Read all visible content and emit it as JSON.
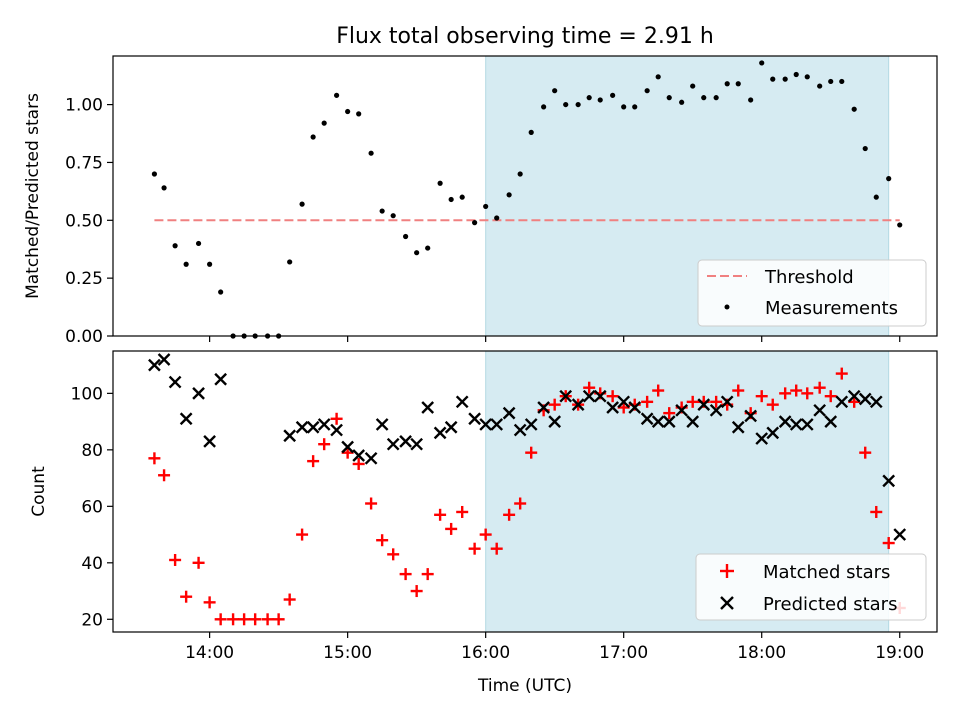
{
  "figure": {
    "title": "Flux total observing time = 2.91 h",
    "xlabel": "Time (UTC)",
    "x_ticks": [
      "14:00",
      "15:00",
      "16:00",
      "17:00",
      "18:00",
      "19:00"
    ],
    "x_tick_hours": [
      14,
      15,
      16,
      17,
      18,
      19
    ],
    "x_range": [
      13.3,
      19.27
    ],
    "highlight_span": [
      16.0,
      18.92
    ],
    "highlight_color": "#add8e6"
  },
  "chart_data": [
    {
      "type": "scatter",
      "ylabel": "Matched/Predicted stars",
      "ylim": [
        0,
        1.21
      ],
      "y_ticks": [
        0.0,
        0.25,
        0.5,
        0.75,
        1.0
      ],
      "y_tick_labels": [
        "0.00",
        "0.25",
        "0.50",
        "0.75",
        "1.00"
      ],
      "threshold": {
        "name": "Threshold",
        "y": 0.5,
        "x_range": [
          13.6,
          19.0
        ],
        "color": "#f08080"
      },
      "legend": {
        "position": "lower-right",
        "entries": [
          "Threshold",
          "Measurements"
        ]
      },
      "series": [
        {
          "name": "Measurements",
          "marker": "dot",
          "color": "#000000",
          "x": [
            13.6,
            13.67,
            13.75,
            13.83,
            13.92,
            14.0,
            14.08,
            14.17,
            14.25,
            14.33,
            14.42,
            14.5,
            14.58,
            14.67,
            14.75,
            14.83,
            14.92,
            15.0,
            15.08,
            15.17,
            15.25,
            15.33,
            15.42,
            15.5,
            15.58,
            15.67,
            15.75,
            15.83,
            15.92,
            16.0,
            16.08,
            16.17,
            16.25,
            16.33,
            16.42,
            16.5,
            16.58,
            16.67,
            16.75,
            16.83,
            16.92,
            17.0,
            17.08,
            17.17,
            17.25,
            17.33,
            17.42,
            17.5,
            17.58,
            17.67,
            17.75,
            17.83,
            17.92,
            18.0,
            18.08,
            18.17,
            18.25,
            18.33,
            18.42,
            18.5,
            18.58,
            18.67,
            18.75,
            18.83,
            18.92,
            19.0
          ],
          "y": [
            0.7,
            0.64,
            0.39,
            0.31,
            0.4,
            0.31,
            0.19,
            0.0,
            0.0,
            0.0,
            0.0,
            0.0,
            0.32,
            0.57,
            0.86,
            0.92,
            1.04,
            0.97,
            0.96,
            0.79,
            0.54,
            0.52,
            0.43,
            0.36,
            0.38,
            0.66,
            0.59,
            0.6,
            0.49,
            0.56,
            0.51,
            0.61,
            0.7,
            0.88,
            0.99,
            1.06,
            1.0,
            1.0,
            1.03,
            1.02,
            1.04,
            0.99,
            0.99,
            1.06,
            1.12,
            1.03,
            1.01,
            1.08,
            1.03,
            1.03,
            1.09,
            1.09,
            1.02,
            1.18,
            1.11,
            1.11,
            1.13,
            1.12,
            1.08,
            1.1,
            1.1,
            0.98,
            0.81,
            0.6,
            0.68,
            0.48
          ]
        }
      ]
    },
    {
      "type": "scatter",
      "ylabel": "Count",
      "ylim": [
        15.5,
        115
      ],
      "y_ticks": [
        20,
        40,
        60,
        80,
        100
      ],
      "y_tick_labels": [
        "20",
        "40",
        "60",
        "80",
        "100"
      ],
      "legend": {
        "position": "lower-right",
        "entries": [
          "Matched stars",
          "Predicted stars"
        ]
      },
      "series": [
        {
          "name": "Matched stars",
          "marker": "plus",
          "color": "#ff0000",
          "x": [
            13.6,
            13.67,
            13.75,
            13.83,
            13.92,
            14.0,
            14.08,
            14.17,
            14.25,
            14.33,
            14.42,
            14.5,
            14.58,
            14.67,
            14.75,
            14.83,
            14.92,
            15.0,
            15.08,
            15.17,
            15.25,
            15.33,
            15.42,
            15.5,
            15.58,
            15.67,
            15.75,
            15.83,
            15.92,
            16.0,
            16.08,
            16.17,
            16.25,
            16.33,
            16.42,
            16.5,
            16.58,
            16.67,
            16.75,
            16.83,
            16.92,
            17.0,
            17.08,
            17.17,
            17.25,
            17.33,
            17.42,
            17.5,
            17.58,
            17.67,
            17.75,
            17.83,
            17.92,
            18.0,
            18.08,
            18.17,
            18.25,
            18.33,
            18.42,
            18.5,
            18.58,
            18.67,
            18.75,
            18.83,
            18.92,
            19.0
          ],
          "y": [
            77,
            71,
            41,
            28,
            40,
            26,
            20,
            20,
            20,
            20,
            20,
            20,
            27,
            50,
            76,
            82,
            91,
            79,
            75,
            61,
            48,
            43,
            36,
            30,
            36,
            57,
            52,
            58,
            45,
            50,
            45,
            57,
            61,
            79,
            94,
            96,
            99,
            96,
            102,
            100,
            99,
            95,
            96,
            97,
            101,
            93,
            95,
            97,
            97,
            97,
            96,
            101,
            93,
            99,
            96,
            100,
            101,
            100,
            102,
            99,
            107,
            97,
            79,
            58,
            47,
            24
          ]
        },
        {
          "name": "Predicted stars",
          "marker": "x",
          "color": "#000000",
          "x": [
            13.6,
            13.67,
            13.75,
            13.83,
            13.92,
            14.0,
            14.08,
            14.58,
            14.67,
            14.75,
            14.83,
            14.92,
            15.0,
            15.08,
            15.17,
            15.25,
            15.33,
            15.42,
            15.5,
            15.58,
            15.67,
            15.75,
            15.83,
            15.92,
            16.0,
            16.08,
            16.17,
            16.25,
            16.33,
            16.42,
            16.5,
            16.58,
            16.67,
            16.75,
            16.83,
            16.92,
            17.0,
            17.08,
            17.17,
            17.25,
            17.33,
            17.42,
            17.5,
            17.58,
            17.67,
            17.75,
            17.83,
            17.92,
            18.0,
            18.08,
            18.17,
            18.25,
            18.33,
            18.42,
            18.5,
            18.58,
            18.67,
            18.75,
            18.83,
            18.92,
            19.0
          ],
          "y": [
            110,
            112,
            104,
            91,
            100,
            83,
            105,
            85,
            88,
            88,
            89,
            87,
            81,
            78,
            77,
            89,
            82,
            83,
            82,
            95,
            86,
            88,
            97,
            91,
            89,
            89,
            93,
            87,
            89,
            95,
            90,
            99,
            96,
            99,
            99,
            95,
            97,
            95,
            91,
            90,
            90,
            94,
            90,
            96,
            94,
            97,
            88,
            92,
            84,
            86,
            90,
            89,
            89,
            94,
            90,
            97,
            99,
            98,
            97,
            69,
            50
          ]
        }
      ]
    }
  ]
}
